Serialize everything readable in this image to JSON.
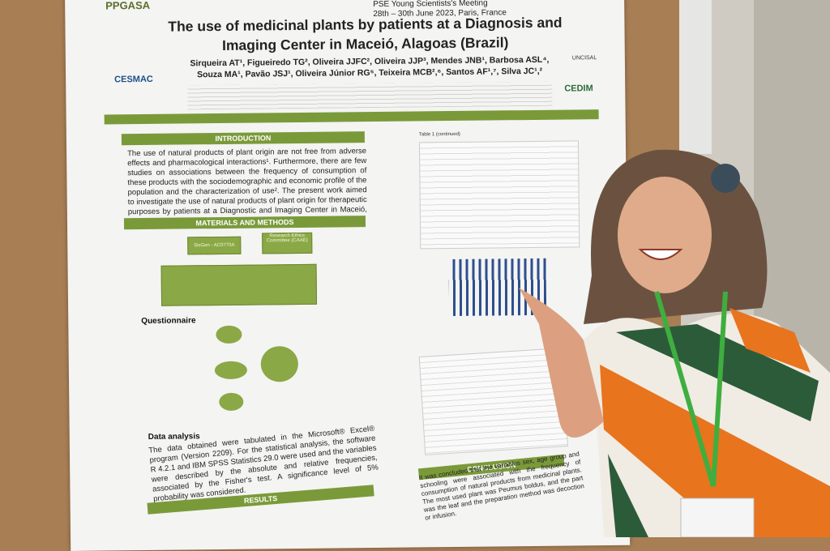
{
  "header": {
    "meeting": "PSE Young Scientists's Meeting",
    "dates": "28th – 30th June 2023, Paris, France",
    "title": "The use of medicinal plants by patients at a Diagnosis and Imaging Center in Maceió, Alagoas (Brazil)",
    "authors": "Sirqueira AT¹, Figueiredo TG², Oliveira JJFC², Oliveira JJP³, Mendes JNB¹, Barbosa ASL⁴, Souza MA¹, Pavão JSJ¹, Oliveira Júnior RG⁵, Teixeira MCB²,⁶, Santos AF¹,⁷, Silva JC¹,²",
    "logos": [
      "PPGASA",
      "CESMAC",
      "UNCISAL",
      "CEDIM"
    ]
  },
  "introduction": {
    "heading": "INTRODUCTION",
    "text": "The use of natural products of plant origin are not free from adverse effects and pharmacological interactions¹. Furthermore, there are few studies on associations between the frequency of consumption of these products with the sociodemographic and economic profile of the population and the characterization of use². The present work aimed to investigate the use of natural products of plant origin for therapeutic purposes by patients at a Diagnostic and Imaging Center in Maceió, Alagoas."
  },
  "methods": {
    "heading": "MATERIALS AND METHODS",
    "boxes": [
      "SisGen - AC0770A",
      "Research Ethics Committee (CAAE)"
    ],
    "questionnaire": "Questionnaire"
  },
  "data_analysis": {
    "heading": "Data analysis",
    "text": "The data obtained were tabulated in the Microsoft® Excel® program (Version 2209). For the statistical analysis, the software R 4.2.1 and IBM SPSS Statistics 29.0 were used and the variables were described by the absolute and relative frequencies, associated by the Fisher's test. A significance level of 5% probability was considered."
  },
  "results": {
    "heading": "RESULTS",
    "table_caption": "Table 1 (continued)"
  },
  "conclusion": {
    "heading": "CONCLUSION",
    "text": "It was concluded that the variables sex, age group and schooling were associated with the frequency of consumption of natural products from medicinal plants. The most used plant was Peumus boldus, and the part was the leaf and the preparation method was decoction or infusion."
  }
}
